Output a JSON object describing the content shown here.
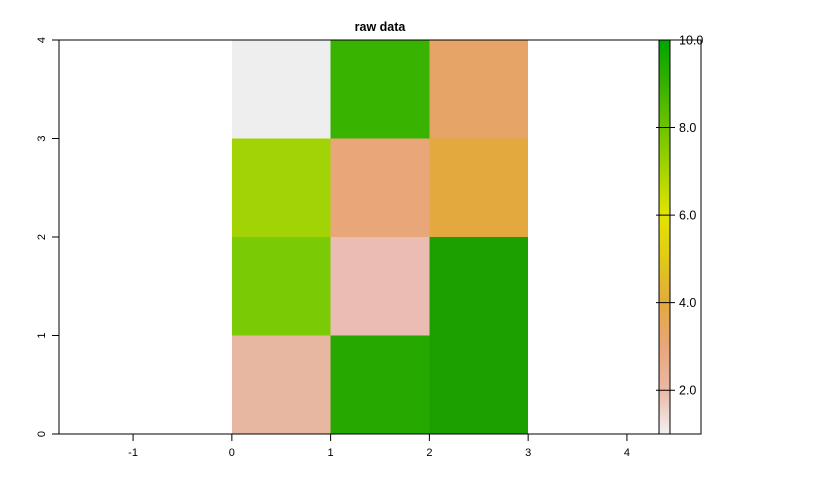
{
  "chart_data": {
    "type": "heatmap",
    "title": "raw data",
    "xlabel": "",
    "ylabel": "",
    "xlim": [
      -1.75,
      4.75
    ],
    "ylim": [
      0,
      4
    ],
    "x_ticks": [
      -1,
      0,
      1,
      2,
      3,
      4
    ],
    "y_ticks": [
      0,
      1,
      2,
      3,
      4
    ],
    "cells": [
      {
        "x": [
          0,
          1
        ],
        "y": [
          3,
          4
        ],
        "value": 1.0,
        "color": "#eeeeee"
      },
      {
        "x": [
          1,
          2
        ],
        "y": [
          3,
          4
        ],
        "value": 8.9,
        "color": "#38b300"
      },
      {
        "x": [
          2,
          3
        ],
        "y": [
          3,
          4
        ],
        "value": 3.2,
        "color": "#e7a467"
      },
      {
        "x": [
          0,
          1
        ],
        "y": [
          2,
          3
        ],
        "value": 6.6,
        "color": "#a2d405"
      },
      {
        "x": [
          1,
          2
        ],
        "y": [
          2,
          3
        ],
        "value": 3.0,
        "color": "#e8a679"
      },
      {
        "x": [
          2,
          3
        ],
        "y": [
          2,
          3
        ],
        "value": 4.0,
        "color": "#e3a93e"
      },
      {
        "x": [
          0,
          1
        ],
        "y": [
          1,
          2
        ],
        "value": 7.4,
        "color": "#7acb05"
      },
      {
        "x": [
          1,
          2
        ],
        "y": [
          1,
          2
        ],
        "value": 1.6,
        "color": "#ebbcb3"
      },
      {
        "x": [
          2,
          3
        ],
        "y": [
          1,
          2
        ],
        "value": 9.9,
        "color": "#1ba000"
      },
      {
        "x": [
          0,
          1
        ],
        "y": [
          0,
          1
        ],
        "value": 2.0,
        "color": "#e8b7a2"
      },
      {
        "x": [
          1,
          2
        ],
        "y": [
          0,
          1
        ],
        "value": 9.3,
        "color": "#26a800"
      },
      {
        "x": [
          2,
          3
        ],
        "y": [
          0,
          1
        ],
        "value": 9.9,
        "color": "#1ba000"
      }
    ],
    "legend": {
      "position": "right",
      "range": [
        1.0,
        10.0
      ],
      "ticks": [
        2.0,
        4.0,
        6.0,
        8.0,
        10.0
      ],
      "tick_labels": [
        "2.0",
        "4.0",
        "6.0",
        "8.0",
        "10.0"
      ],
      "color_stops": [
        {
          "value": 1.0,
          "color": "#f2f2f2"
        },
        {
          "value": 2.0,
          "color": "#ecb7a4"
        },
        {
          "value": 3.0,
          "color": "#e8a67a"
        },
        {
          "value": 4.0,
          "color": "#e3aa3c"
        },
        {
          "value": 5.0,
          "color": "#e2c918"
        },
        {
          "value": 6.0,
          "color": "#e3e400"
        },
        {
          "value": 7.0,
          "color": "#a7d400"
        },
        {
          "value": 8.0,
          "color": "#6dc400"
        },
        {
          "value": 9.0,
          "color": "#36b000"
        },
        {
          "value": 10.0,
          "color": "#00a600"
        }
      ]
    },
    "grid": false
  }
}
